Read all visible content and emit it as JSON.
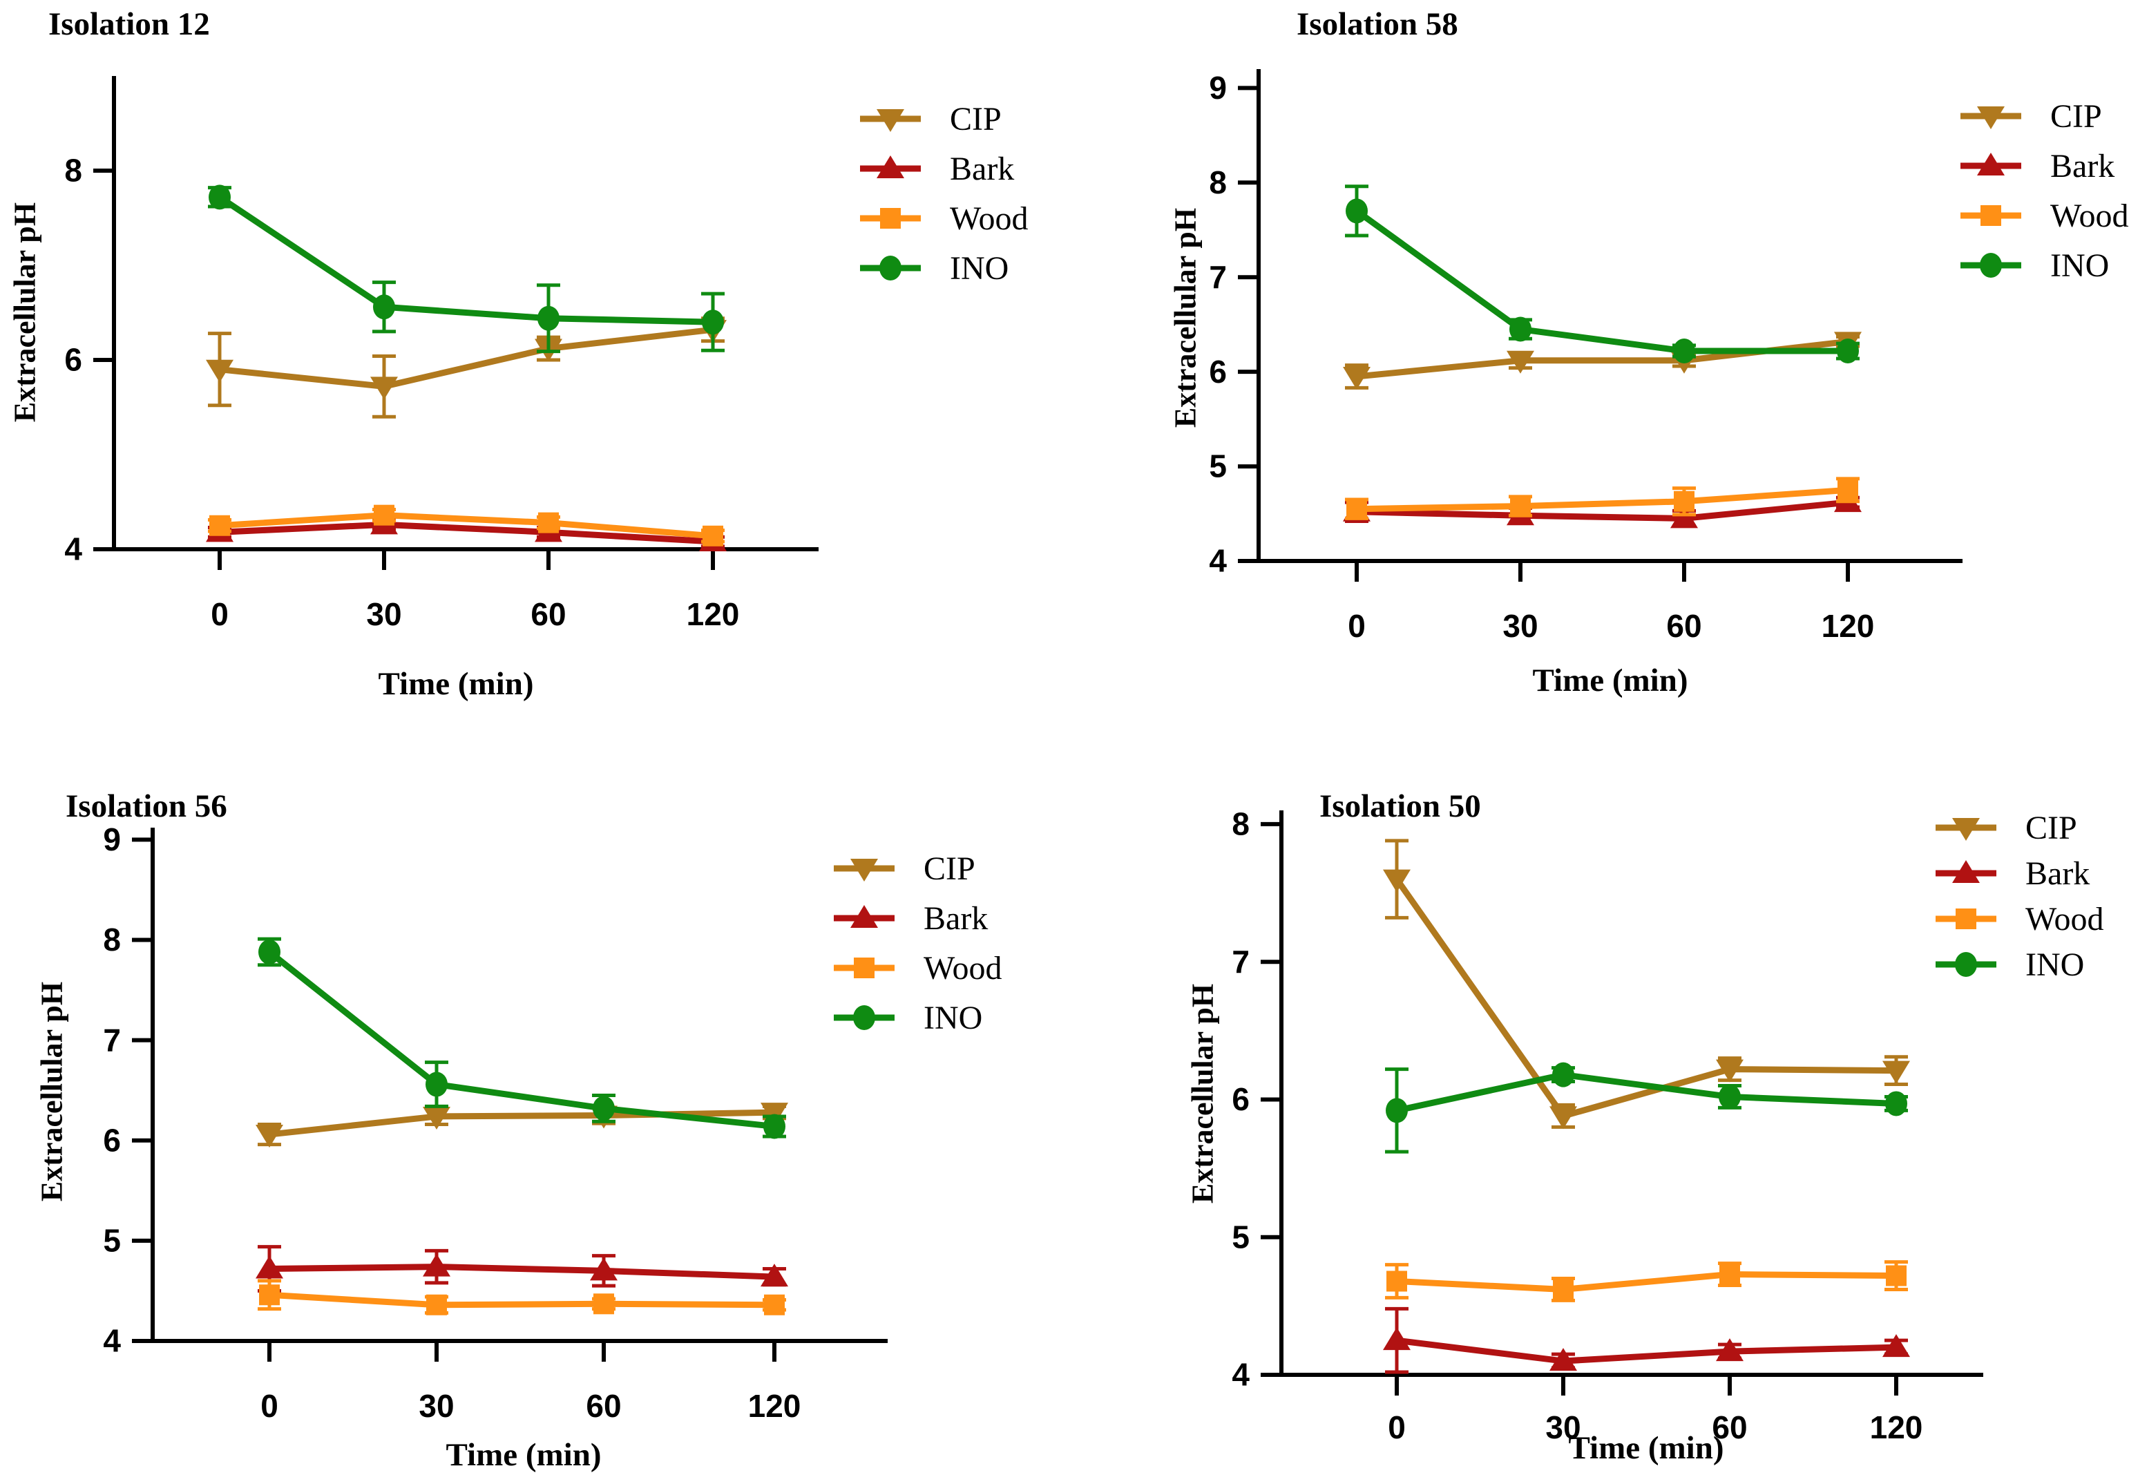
{
  "figure": {
    "background": "#ffffff",
    "axis_color": "#000000",
    "series_palette": {
      "CIP": "#B0791E",
      "Bark": "#B11212",
      "Wood": "#FF9015",
      "INO": "#0F8B12"
    },
    "marker_shapes": {
      "CIP": "triangle-down",
      "Bark": "triangle-up",
      "Wood": "square",
      "INO": "circle"
    }
  },
  "chart_data": [
    {
      "id": "isolation-12",
      "type": "line",
      "title": "Isolation 12",
      "xlabel": "Time (min)",
      "ylabel": "Extracellular pH",
      "x_categories": [
        "0",
        "30",
        "60",
        "120"
      ],
      "y_ticks": [
        4,
        6,
        8
      ],
      "ylim": [
        4,
        9
      ],
      "grid": false,
      "legend_position": "right",
      "series": [
        {
          "name": "CIP",
          "color": "#B0791E",
          "marker": "triangle-down",
          "values": [
            5.9,
            5.72,
            6.12,
            6.32
          ],
          "errors": [
            0.38,
            0.32,
            0.12,
            0.12
          ]
        },
        {
          "name": "Bark",
          "color": "#B11212",
          "marker": "triangle-up",
          "values": [
            4.18,
            4.26,
            4.18,
            4.08
          ],
          "errors": [
            0.05,
            0.05,
            0.05,
            0.05
          ]
        },
        {
          "name": "Wood",
          "color": "#FF9015",
          "marker": "square",
          "values": [
            4.25,
            4.36,
            4.28,
            4.14
          ],
          "errors": [
            0.06,
            0.06,
            0.06,
            0.06
          ]
        },
        {
          "name": "INO",
          "color": "#0F8B12",
          "marker": "circle",
          "values": [
            7.72,
            6.56,
            6.44,
            6.4
          ],
          "errors": [
            0.1,
            0.26,
            0.35,
            0.3
          ]
        }
      ]
    },
    {
      "id": "isolation-58",
      "type": "line",
      "title": "Isolation 58",
      "xlabel": "Time (min)",
      "ylabel": "Extracellular pH",
      "x_categories": [
        "0",
        "30",
        "60",
        "120"
      ],
      "y_ticks": [
        4,
        5,
        6,
        7,
        8,
        9
      ],
      "ylim": [
        4,
        9.2
      ],
      "grid": false,
      "legend_position": "right",
      "series": [
        {
          "name": "CIP",
          "color": "#B0791E",
          "marker": "triangle-down",
          "values": [
            5.95,
            6.12,
            6.12,
            6.32
          ],
          "errors": [
            0.12,
            0.08,
            0.06,
            0.05
          ]
        },
        {
          "name": "Bark",
          "color": "#B11212",
          "marker": "triangle-up",
          "values": [
            4.52,
            4.48,
            4.45,
            4.62
          ],
          "errors": [
            0.1,
            0.08,
            0.08,
            0.05
          ]
        },
        {
          "name": "Wood",
          "color": "#FF9015",
          "marker": "square",
          "values": [
            4.55,
            4.58,
            4.63,
            4.75
          ],
          "errors": [
            0.1,
            0.1,
            0.14,
            0.12
          ]
        },
        {
          "name": "INO",
          "color": "#0F8B12",
          "marker": "circle",
          "values": [
            7.7,
            6.45,
            6.22,
            6.22
          ],
          "errors": [
            0.26,
            0.1,
            0.06,
            0.08
          ]
        }
      ]
    },
    {
      "id": "isolation-56",
      "type": "line",
      "title": "Isolation 56",
      "xlabel": "Time (min)",
      "ylabel": "Extracellular pH",
      "x_categories": [
        "0",
        "30",
        "60",
        "120"
      ],
      "y_ticks": [
        4,
        5,
        6,
        7,
        8,
        9
      ],
      "ylim": [
        4,
        9.12
      ],
      "grid": false,
      "legend_position": "right",
      "series": [
        {
          "name": "CIP",
          "color": "#B0791E",
          "marker": "triangle-down",
          "values": [
            6.06,
            6.24,
            6.25,
            6.28
          ],
          "errors": [
            0.1,
            0.08,
            0.08,
            0.06
          ]
        },
        {
          "name": "Bark",
          "color": "#B11212",
          "marker": "triangle-up",
          "values": [
            4.72,
            4.74,
            4.7,
            4.64
          ],
          "errors": [
            0.22,
            0.16,
            0.15,
            0.08
          ]
        },
        {
          "name": "Wood",
          "color": "#FF9015",
          "marker": "square",
          "values": [
            4.46,
            4.36,
            4.37,
            4.36
          ],
          "errors": [
            0.14,
            0.08,
            0.05,
            0.05
          ]
        },
        {
          "name": "INO",
          "color": "#0F8B12",
          "marker": "circle",
          "values": [
            7.88,
            6.56,
            6.32,
            6.14
          ],
          "errors": [
            0.13,
            0.22,
            0.13,
            0.1
          ]
        }
      ]
    },
    {
      "id": "isolation-50",
      "type": "line",
      "title": "Isolation 50",
      "xlabel": "Time (min)",
      "ylabel": "Extracellular pH",
      "x_categories": [
        "0",
        "30",
        "60",
        "120"
      ],
      "y_ticks": [
        4,
        5,
        6,
        7,
        8
      ],
      "ylim": [
        4,
        8.1
      ],
      "grid": false,
      "legend_position": "right",
      "series": [
        {
          "name": "CIP",
          "color": "#B0791E",
          "marker": "triangle-down",
          "values": [
            7.6,
            5.88,
            6.22,
            6.21
          ],
          "errors": [
            0.28,
            0.08,
            0.08,
            0.1
          ]
        },
        {
          "name": "Bark",
          "color": "#B11212",
          "marker": "triangle-up",
          "values": [
            4.25,
            4.1,
            4.17,
            4.2
          ],
          "errors": [
            0.23,
            0.05,
            0.05,
            0.05
          ]
        },
        {
          "name": "Wood",
          "color": "#FF9015",
          "marker": "square",
          "values": [
            4.68,
            4.62,
            4.73,
            4.72
          ],
          "errors": [
            0.12,
            0.08,
            0.08,
            0.1
          ]
        },
        {
          "name": "INO",
          "color": "#0F8B12",
          "marker": "circle",
          "values": [
            5.92,
            6.18,
            6.02,
            5.97
          ],
          "errors": [
            0.3,
            0.05,
            0.08,
            0.05
          ]
        }
      ]
    }
  ]
}
